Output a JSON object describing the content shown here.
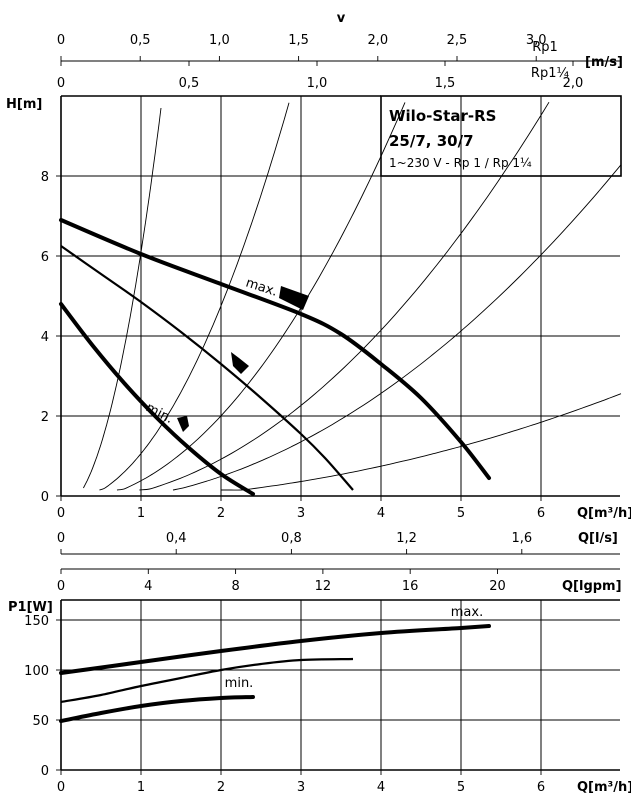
{
  "chart_data": [
    {
      "type": "line",
      "name_label": "H-Q pump curves",
      "title_box": {
        "line1": "Wilo-Star-RS",
        "line2": "25/7, 30/7",
        "line3": "1~230 V - Rp 1 / Rp 1¼"
      },
      "ylabel": "H[m]",
      "xlabel": "Q[m³/h]",
      "xlim": [
        0,
        7
      ],
      "ylim": [
        0,
        10
      ],
      "x_ticks": [
        0,
        1,
        2,
        3,
        4,
        5,
        6
      ],
      "y_ticks": [
        0,
        2,
        4,
        6,
        8
      ],
      "grid": true,
      "top_axes": {
        "v_label": "v",
        "unit_label": "[m/s]",
        "rp1": {
          "label": "Rp1",
          "ticks": [
            "0",
            "0,5",
            "1,0",
            "1,5",
            "2,0",
            "2,5",
            "3,0"
          ],
          "values": [
            0,
            0.5,
            1.0,
            1.5,
            2.0,
            2.5,
            3.0
          ],
          "m3h_per_ms": 1.98
        },
        "rp114": {
          "label": "Rp1¼",
          "ticks": [
            "0",
            "0,5",
            "1,0",
            "1,5",
            "2,0"
          ],
          "values": [
            0,
            0.5,
            1.0,
            1.5,
            2.0
          ],
          "m3h_per_ms": 3.2
        }
      },
      "bottom_axes": [
        {
          "label": "Q[l/s]",
          "ticks": [
            "0",
            "0,4",
            "0,8",
            "1,2",
            "1,6"
          ],
          "values": [
            0,
            0.4,
            0.8,
            1.2,
            1.6
          ],
          "factor": 3.6
        },
        {
          "label": "Q[lgpm]",
          "ticks": [
            "0",
            "4",
            "8",
            "12",
            "16",
            "20"
          ],
          "values": [
            0,
            4,
            8,
            12,
            16,
            20
          ],
          "factor": 0.2728
        }
      ],
      "series": [
        {
          "name": "max.",
          "x": [
            0,
            1,
            2,
            3,
            3.5,
            4,
            4.5,
            5,
            5.35
          ],
          "y": [
            6.9,
            6.05,
            5.3,
            4.55,
            4.05,
            3.3,
            2.45,
            1.35,
            0.45
          ],
          "style": "thick"
        },
        {
          "name": "",
          "x": [
            0,
            0.5,
            1,
            1.5,
            2,
            2.5,
            3,
            3.3,
            3.65
          ],
          "y": [
            6.25,
            5.55,
            4.85,
            4.1,
            3.3,
            2.45,
            1.55,
            0.95,
            0.15
          ],
          "style": "mid"
        },
        {
          "name": "min.",
          "x": [
            0,
            0.4,
            0.8,
            1.2,
            1.6,
            2.0,
            2.4
          ],
          "y": [
            4.8,
            3.75,
            2.8,
            1.95,
            1.2,
            0.55,
            0.05
          ],
          "style": "thick"
        }
      ],
      "system_curves_x_at_top": [
        1.25,
        2.85,
        4.3,
        6.1,
        7.6,
        13.5
      ],
      "system_curves_x_start": [
        0.28,
        0.48,
        0.7,
        0.98,
        1.4,
        2.0
      ],
      "markers": [
        {
          "label": "max.",
          "x": 3.05,
          "y": 4.9
        },
        {
          "label": "",
          "x": 2.25,
          "y": 3.3
        },
        {
          "label": "min.",
          "x": 1.55,
          "y": 1.85
        }
      ]
    },
    {
      "type": "line",
      "name_label": "P1-Q power curves",
      "ylabel": "P1[W]",
      "xlabel": "Q[m³/h]",
      "xlim": [
        0,
        7
      ],
      "ylim": [
        0,
        170
      ],
      "x_ticks": [
        0,
        1,
        2,
        3,
        4,
        5,
        6
      ],
      "y_ticks": [
        0,
        50,
        100,
        150
      ],
      "grid": true,
      "series": [
        {
          "name": "max.",
          "x": [
            0,
            1,
            2,
            3,
            4,
            5,
            5.35
          ],
          "y": [
            97,
            108,
            119,
            129,
            137,
            142,
            144
          ],
          "style": "thick"
        },
        {
          "name": "",
          "x": [
            0,
            0.5,
            1,
            1.5,
            2,
            2.5,
            3,
            3.65
          ],
          "y": [
            68,
            75,
            84,
            92,
            100,
            106,
            110,
            111
          ],
          "style": "mid"
        },
        {
          "name": "min.",
          "x": [
            0,
            0.5,
            1,
            1.5,
            2,
            2.4
          ],
          "y": [
            49,
            57,
            64,
            69,
            72,
            73
          ],
          "style": "thick"
        }
      ]
    }
  ]
}
